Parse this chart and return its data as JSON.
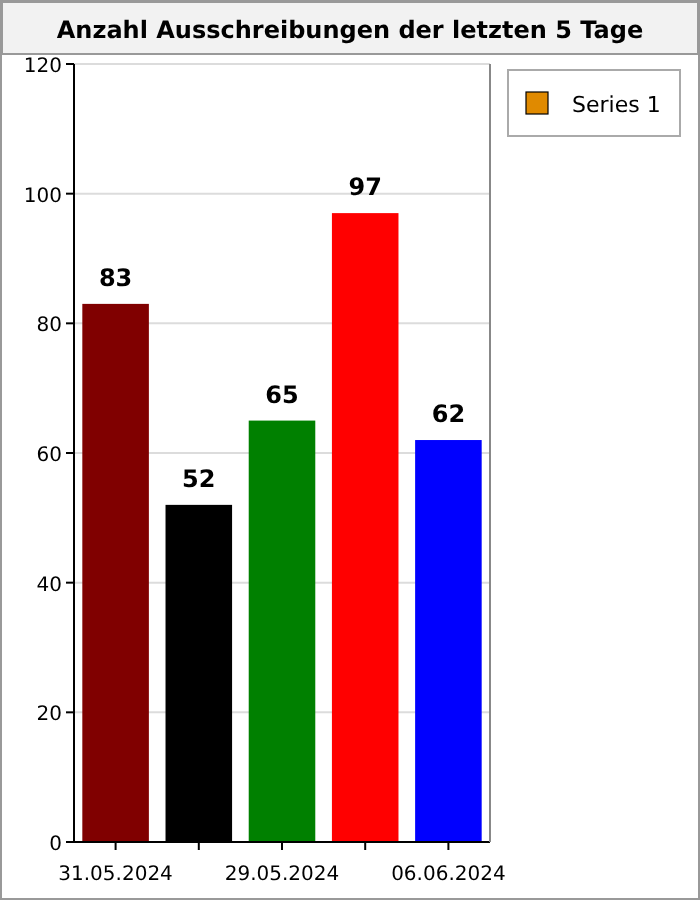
{
  "chart_data": {
    "type": "bar",
    "title": "Anzahl Ausschreibungen der letzten 5 Tage",
    "categories": [
      "31.05.2024",
      null,
      "29.05.2024",
      null,
      "06.06.2024"
    ],
    "series": [
      {
        "name": "Series 1",
        "color": "#e08a00",
        "values": [
          83,
          52,
          65,
          97,
          62
        ],
        "colors": [
          "#800000",
          "#000000",
          "#008000",
          "#ff0000",
          "#0000ff"
        ]
      }
    ],
    "ylim": [
      0,
      120
    ],
    "yticks": [
      0,
      20,
      40,
      60,
      80,
      100,
      120
    ],
    "grid": "y",
    "legend": "top right",
    "data_labels": true
  }
}
